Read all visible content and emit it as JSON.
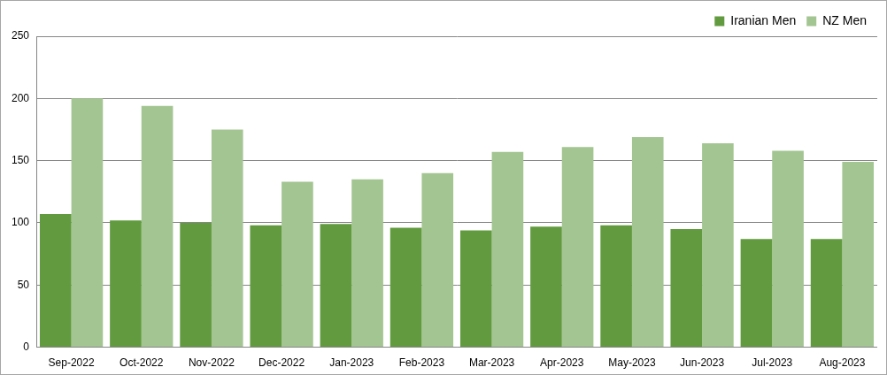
{
  "chart_data": {
    "type": "bar",
    "categories": [
      "Sep-2022",
      "Oct-2022",
      "Nov-2022",
      "Dec-2022",
      "Jan-2023",
      "Feb-2023",
      "Mar-2023",
      "Apr-2023",
      "May-2023",
      "Jun-2023",
      "Jul-2023",
      "Aug-2023"
    ],
    "series": [
      {
        "name": "Iranian Men",
        "color": "#629b3f",
        "values": [
          107,
          102,
          100,
          98,
          99,
          96,
          94,
          97,
          98,
          95,
          87,
          87
        ]
      },
      {
        "name": "NZ Men",
        "color": "#a3c592",
        "values": [
          200,
          194,
          175,
          133,
          135,
          140,
          157,
          161,
          169,
          164,
          158,
          149
        ]
      }
    ],
    "ylim": [
      0,
      250
    ],
    "yticks": [
      0,
      50,
      100,
      150,
      200,
      250
    ],
    "grid": true,
    "legend": "top-right"
  }
}
